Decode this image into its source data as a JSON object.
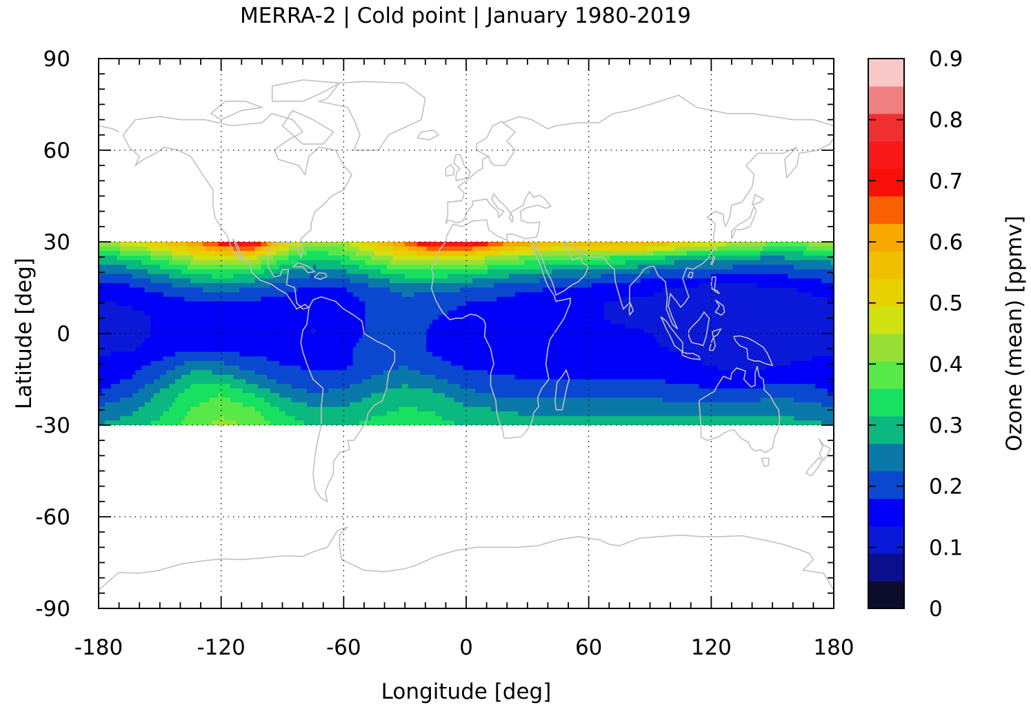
{
  "chart_data": {
    "type": "heatmap",
    "title": "MERRA-2 | Cold point | January 1980-2019",
    "xlabel": "Longitude [deg]",
    "ylabel": "Latitude [deg]",
    "colorbar_label": "Ozone (mean) [ppmv]",
    "xlim": [
      -180,
      180
    ],
    "ylim": [
      -90,
      90
    ],
    "data_lat_range": [
      -30,
      30
    ],
    "x_ticks": [
      "-180",
      "-120",
      "-60",
      "0",
      "60",
      "120",
      "180"
    ],
    "x_tick_values": [
      -180,
      -120,
      -60,
      0,
      60,
      120,
      180
    ],
    "y_ticks": [
      "90",
      "60",
      "30",
      "0",
      "-30",
      "-60",
      "-90"
    ],
    "y_tick_values": [
      90,
      60,
      30,
      0,
      -30,
      -60,
      -90
    ],
    "colorbar_ticks": [
      "0.9",
      "0.8",
      "0.7",
      "0.6",
      "0.5",
      "0.4",
      "0.3",
      "0.2",
      "0.1",
      "0"
    ],
    "colorbar_tick_values": [
      0.9,
      0.8,
      0.7,
      0.6,
      0.5,
      0.4,
      0.3,
      0.2,
      0.1,
      0
    ],
    "colorbar_levels": [
      0,
      0.045,
      0.09,
      0.135,
      0.18,
      0.225,
      0.27,
      0.315,
      0.36,
      0.405,
      0.45,
      0.495,
      0.54,
      0.585,
      0.63,
      0.675,
      0.72,
      0.765,
      0.81,
      0.855,
      0.9
    ],
    "colorbar_colors": [
      "#0c0c2c",
      "#0a0f8c",
      "#0a18d8",
      "#0000f8",
      "#0a48d0",
      "#0a78a8",
      "#0ab880",
      "#18e060",
      "#58e848",
      "#98e038",
      "#d0e010",
      "#e8d000",
      "#f0c000",
      "#f8a800",
      "#f86000",
      "#f81008",
      "#f81818",
      "#f03030",
      "#f08080",
      "#f8c8c8"
    ],
    "coastline_color": "#c0c0c0",
    "grid": true,
    "grid_style": "dotted",
    "field_lon": [
      -180,
      -165,
      -150,
      -135,
      -120,
      -105,
      -90,
      -75,
      -60,
      -45,
      -30,
      -15,
      0,
      15,
      30,
      45,
      60,
      75,
      90,
      105,
      120,
      135,
      150,
      165,
      180
    ],
    "field_lat": [
      30,
      25,
      20,
      15,
      10,
      5,
      0,
      -5,
      -10,
      -15,
      -20,
      -25,
      -30
    ],
    "field_values": [
      [
        0.45,
        0.48,
        0.55,
        0.62,
        0.72,
        0.78,
        0.55,
        0.42,
        0.45,
        0.55,
        0.65,
        0.78,
        0.78,
        0.68,
        0.62,
        0.58,
        0.6,
        0.62,
        0.62,
        0.55,
        0.5,
        0.46,
        0.42,
        0.42,
        0.45
      ],
      [
        0.3,
        0.33,
        0.38,
        0.45,
        0.5,
        0.48,
        0.38,
        0.32,
        0.35,
        0.42,
        0.48,
        0.5,
        0.48,
        0.44,
        0.4,
        0.38,
        0.38,
        0.36,
        0.34,
        0.3,
        0.3,
        0.28,
        0.27,
        0.28,
        0.3
      ],
      [
        0.22,
        0.24,
        0.28,
        0.32,
        0.35,
        0.33,
        0.27,
        0.24,
        0.26,
        0.3,
        0.34,
        0.35,
        0.33,
        0.3,
        0.28,
        0.26,
        0.25,
        0.24,
        0.22,
        0.2,
        0.2,
        0.19,
        0.19,
        0.2,
        0.22
      ],
      [
        0.16,
        0.17,
        0.2,
        0.23,
        0.24,
        0.23,
        0.2,
        0.17,
        0.18,
        0.22,
        0.24,
        0.24,
        0.23,
        0.21,
        0.19,
        0.18,
        0.17,
        0.15,
        0.14,
        0.13,
        0.12,
        0.12,
        0.13,
        0.14,
        0.16
      ],
      [
        0.13,
        0.14,
        0.15,
        0.17,
        0.18,
        0.17,
        0.16,
        0.16,
        0.16,
        0.19,
        0.21,
        0.2,
        0.18,
        0.17,
        0.15,
        0.15,
        0.14,
        0.13,
        0.13,
        0.12,
        0.11,
        0.11,
        0.115,
        0.12,
        0.13
      ],
      [
        0.11,
        0.12,
        0.14,
        0.16,
        0.16,
        0.16,
        0.15,
        0.15,
        0.16,
        0.19,
        0.2,
        0.18,
        0.16,
        0.15,
        0.145,
        0.145,
        0.14,
        0.13,
        0.13,
        0.12,
        0.11,
        0.11,
        0.115,
        0.12,
        0.11
      ],
      [
        0.11,
        0.12,
        0.14,
        0.16,
        0.16,
        0.15,
        0.15,
        0.13,
        0.16,
        0.19,
        0.2,
        0.17,
        0.15,
        0.15,
        0.15,
        0.15,
        0.145,
        0.14,
        0.135,
        0.12,
        0.11,
        0.11,
        0.115,
        0.12,
        0.11
      ],
      [
        0.12,
        0.13,
        0.15,
        0.17,
        0.17,
        0.16,
        0.16,
        0.16,
        0.17,
        0.2,
        0.2,
        0.17,
        0.15,
        0.15,
        0.15,
        0.15,
        0.145,
        0.14,
        0.14,
        0.13,
        0.11,
        0.11,
        0.115,
        0.12,
        0.12
      ],
      [
        0.15,
        0.16,
        0.19,
        0.24,
        0.23,
        0.2,
        0.18,
        0.17,
        0.17,
        0.21,
        0.22,
        0.19,
        0.17,
        0.16,
        0.16,
        0.16,
        0.16,
        0.16,
        0.16,
        0.15,
        0.13,
        0.12,
        0.13,
        0.14,
        0.15
      ],
      [
        0.16,
        0.18,
        0.23,
        0.3,
        0.3,
        0.25,
        0.21,
        0.19,
        0.2,
        0.23,
        0.25,
        0.23,
        0.2,
        0.19,
        0.18,
        0.18,
        0.18,
        0.18,
        0.18,
        0.17,
        0.16,
        0.15,
        0.16,
        0.17,
        0.16
      ],
      [
        0.18,
        0.22,
        0.28,
        0.34,
        0.36,
        0.32,
        0.26,
        0.23,
        0.24,
        0.27,
        0.3,
        0.28,
        0.24,
        0.22,
        0.21,
        0.21,
        0.21,
        0.21,
        0.21,
        0.2,
        0.2,
        0.2,
        0.21,
        0.21,
        0.18
      ],
      [
        0.24,
        0.26,
        0.3,
        0.36,
        0.39,
        0.37,
        0.31,
        0.28,
        0.28,
        0.3,
        0.32,
        0.31,
        0.28,
        0.27,
        0.26,
        0.26,
        0.26,
        0.26,
        0.26,
        0.26,
        0.26,
        0.26,
        0.26,
        0.25,
        0.24
      ],
      [
        0.27,
        0.29,
        0.33,
        0.38,
        0.42,
        0.4,
        0.34,
        0.31,
        0.31,
        0.33,
        0.35,
        0.33,
        0.31,
        0.3,
        0.29,
        0.29,
        0.29,
        0.29,
        0.29,
        0.29,
        0.29,
        0.29,
        0.29,
        0.28,
        0.27
      ]
    ]
  }
}
